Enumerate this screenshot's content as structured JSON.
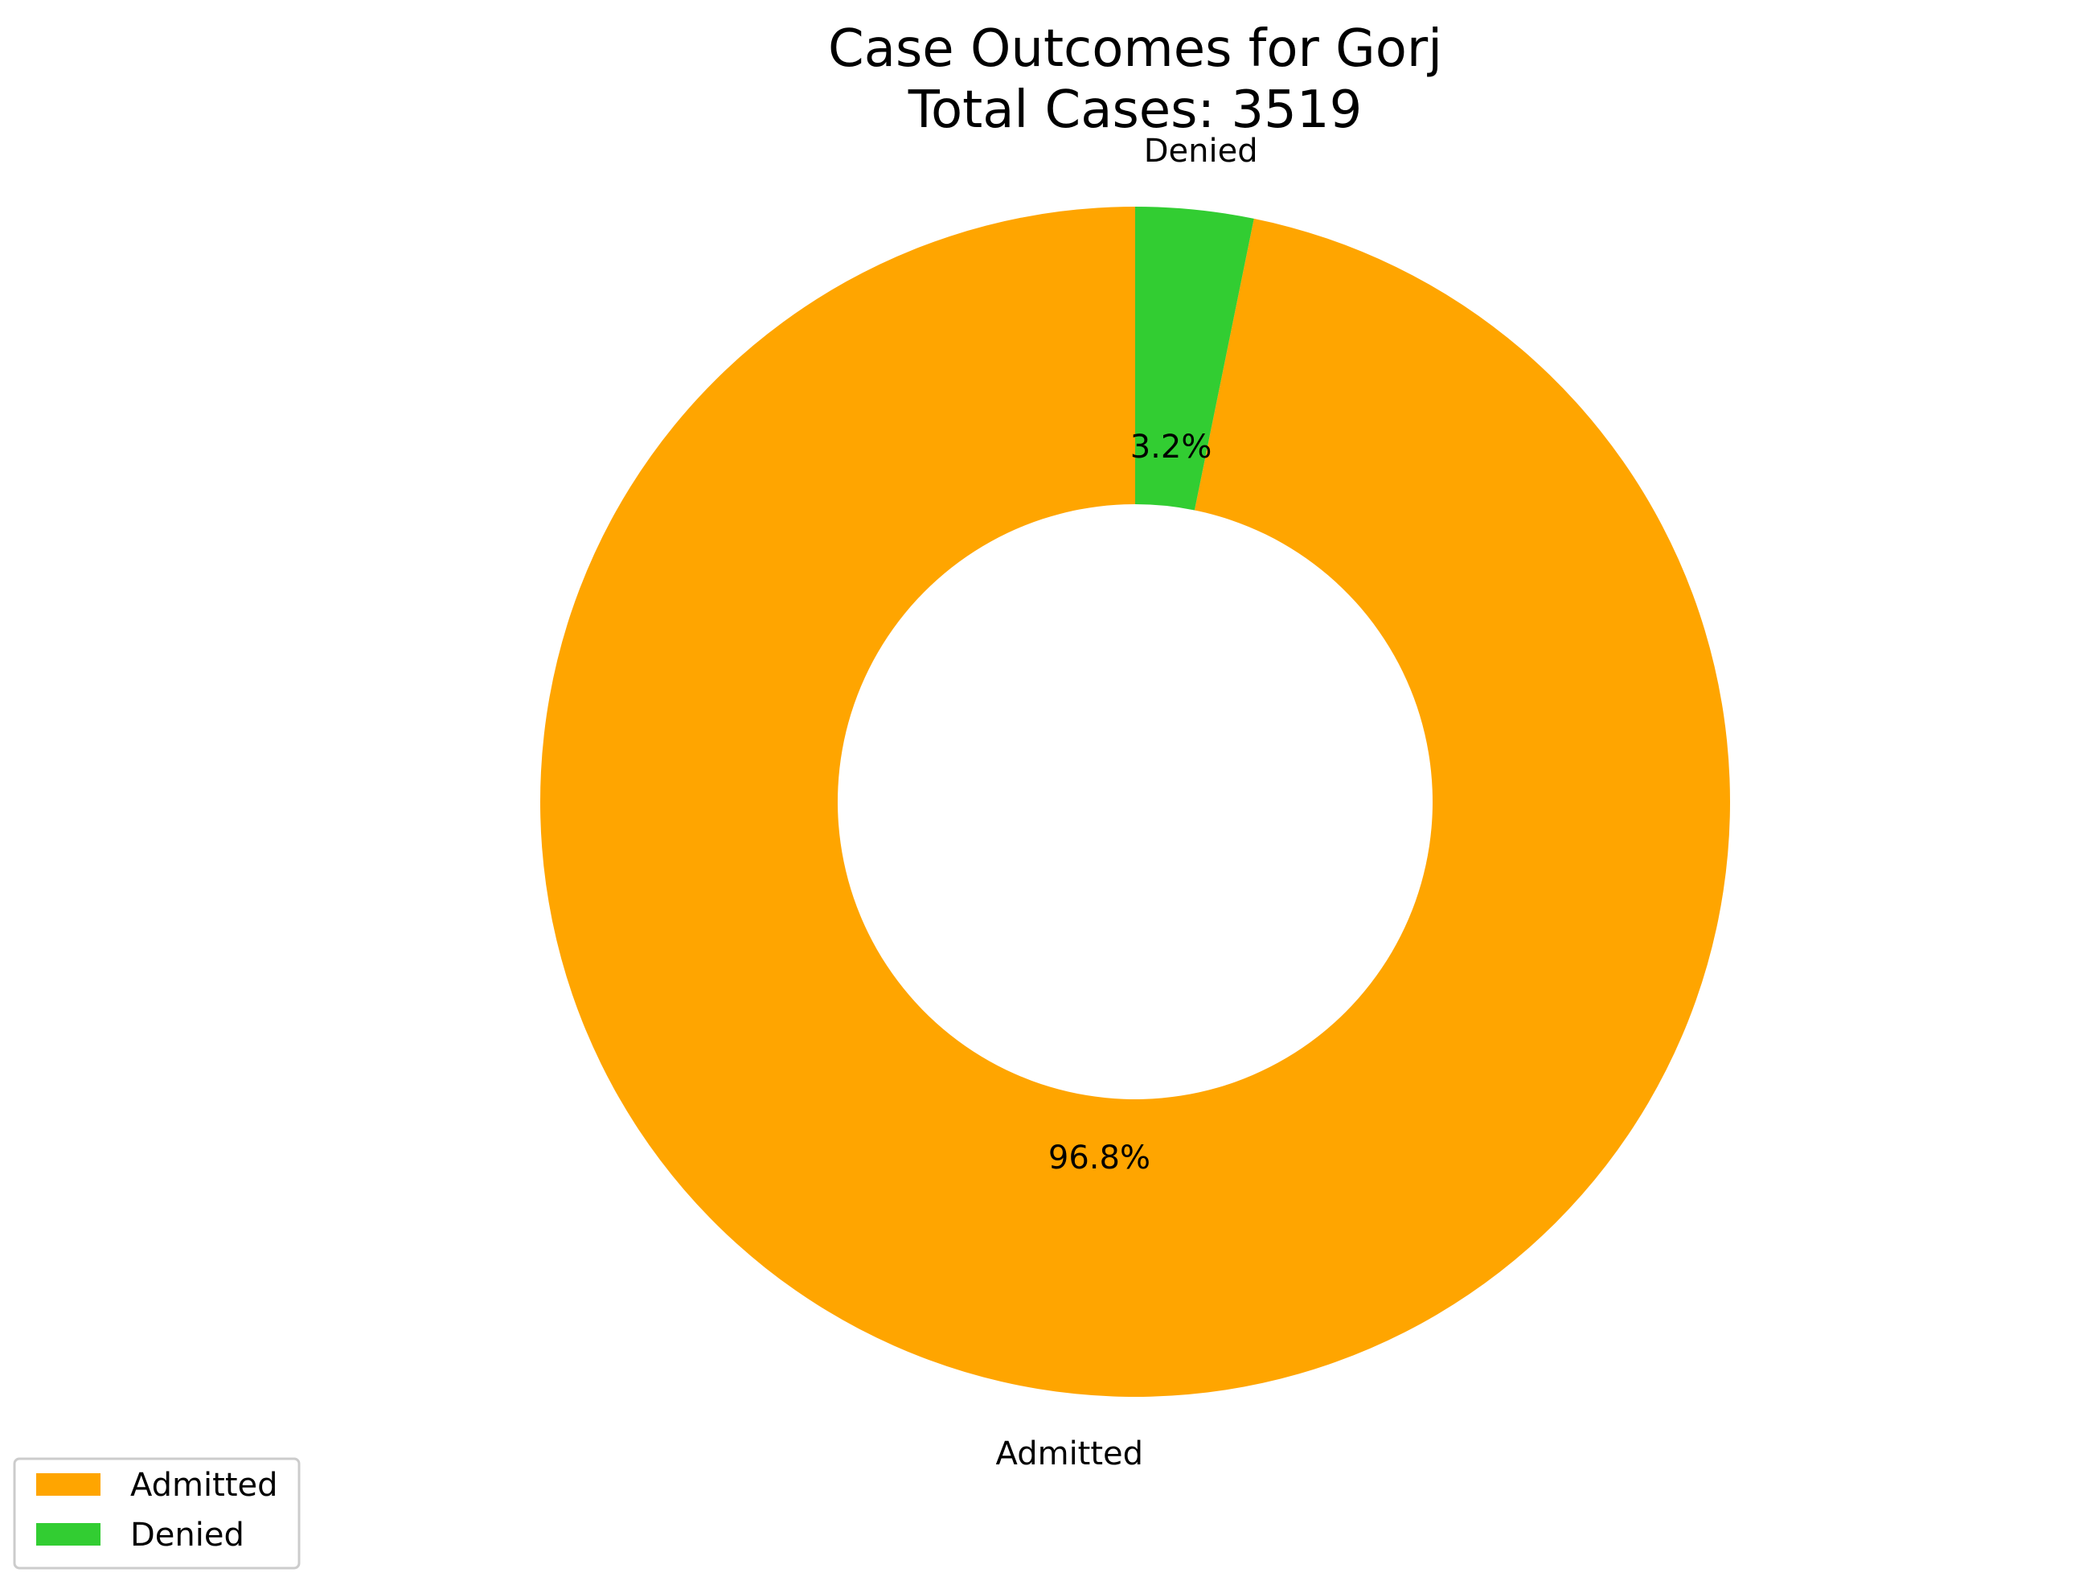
{
  "chart_data": {
    "type": "pie",
    "donut": true,
    "title": "Case Outcomes for Gorj",
    "subtitle": "Total Cases: 3519",
    "categories": [
      "Admitted",
      "Denied"
    ],
    "values": [
      96.8,
      3.2
    ],
    "value_labels": [
      "96.8%",
      "3.2%"
    ],
    "colors": [
      "#FFA500",
      "#32CD32"
    ],
    "start_angle_deg": 90,
    "direction": "counterclockwise",
    "legend": {
      "placement": "lower-left",
      "entries": [
        "Admitted",
        "Denied"
      ]
    }
  }
}
